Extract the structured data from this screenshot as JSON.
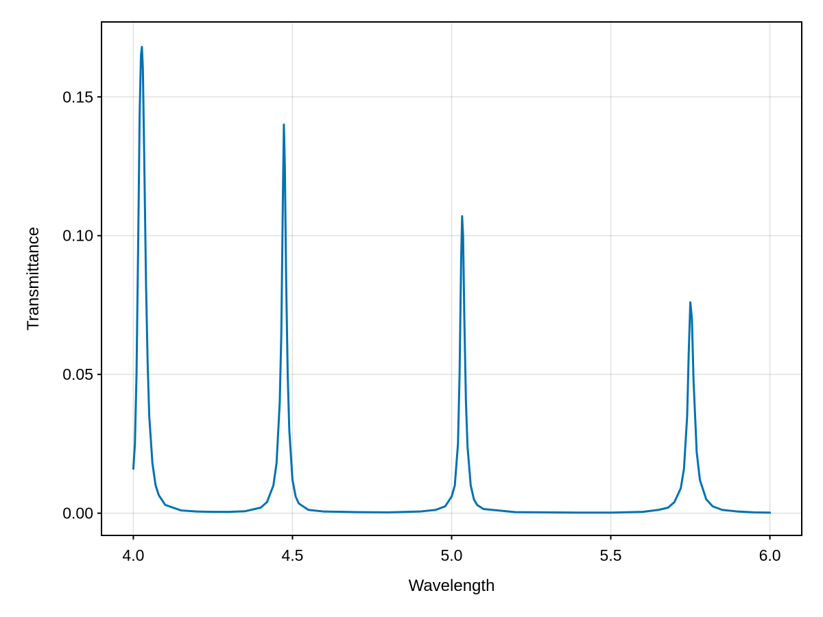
{
  "chart_data": {
    "type": "line",
    "title": "",
    "xlabel": "Wavelength",
    "ylabel": "Transmittance",
    "xlim": [
      3.9,
      6.1
    ],
    "ylim": [
      -0.008,
      0.177
    ],
    "xticks": [
      4.0,
      4.5,
      5.0,
      5.5,
      6.0
    ],
    "xtick_labels": [
      "4.0",
      "4.5",
      "5.0",
      "5.5",
      "6.0"
    ],
    "yticks": [
      0.0,
      0.05,
      0.1,
      0.15
    ],
    "ytick_labels": [
      "0.00",
      "0.05",
      "0.10",
      "0.15"
    ],
    "grid": true,
    "legend": "none",
    "colors": {
      "series": "#0072b2"
    },
    "series": [
      {
        "x": [
          4.0,
          4.005,
          4.01,
          4.015,
          4.02,
          4.024,
          4.027,
          4.03,
          4.034,
          4.04,
          4.045,
          4.05,
          4.06,
          4.07,
          4.08,
          4.1,
          4.15,
          4.2,
          4.25,
          4.3,
          4.35,
          4.4,
          4.42,
          4.44,
          4.45,
          4.46,
          4.465,
          4.47,
          4.473,
          4.476,
          4.48,
          4.485,
          4.49,
          4.5,
          4.51,
          4.52,
          4.55,
          4.6,
          4.7,
          4.8,
          4.9,
          4.95,
          4.98,
          5.0,
          5.01,
          5.02,
          5.025,
          5.03,
          5.033,
          5.036,
          5.04,
          5.045,
          5.05,
          5.06,
          5.07,
          5.08,
          5.1,
          5.2,
          5.3,
          5.4,
          5.5,
          5.6,
          5.65,
          5.68,
          5.7,
          5.72,
          5.73,
          5.74,
          5.745,
          5.75,
          5.755,
          5.76,
          5.77,
          5.78,
          5.8,
          5.82,
          5.85,
          5.9,
          5.95,
          6.0
        ],
        "y": [
          0.016,
          0.025,
          0.05,
          0.095,
          0.145,
          0.165,
          0.168,
          0.16,
          0.13,
          0.082,
          0.054,
          0.035,
          0.018,
          0.01,
          0.0065,
          0.003,
          0.001,
          0.0006,
          0.0005,
          0.0005,
          0.0007,
          0.002,
          0.004,
          0.01,
          0.018,
          0.04,
          0.065,
          0.115,
          0.14,
          0.125,
          0.085,
          0.05,
          0.03,
          0.012,
          0.006,
          0.0035,
          0.0012,
          0.0006,
          0.0004,
          0.0003,
          0.0006,
          0.0012,
          0.0025,
          0.006,
          0.01,
          0.025,
          0.05,
          0.092,
          0.107,
          0.1,
          0.07,
          0.04,
          0.024,
          0.01,
          0.005,
          0.003,
          0.0015,
          0.0004,
          0.0003,
          0.0002,
          0.0002,
          0.0005,
          0.0012,
          0.002,
          0.004,
          0.009,
          0.016,
          0.035,
          0.058,
          0.076,
          0.07,
          0.048,
          0.022,
          0.012,
          0.005,
          0.0025,
          0.0012,
          0.0006,
          0.0003,
          0.0002
        ]
      }
    ]
  }
}
